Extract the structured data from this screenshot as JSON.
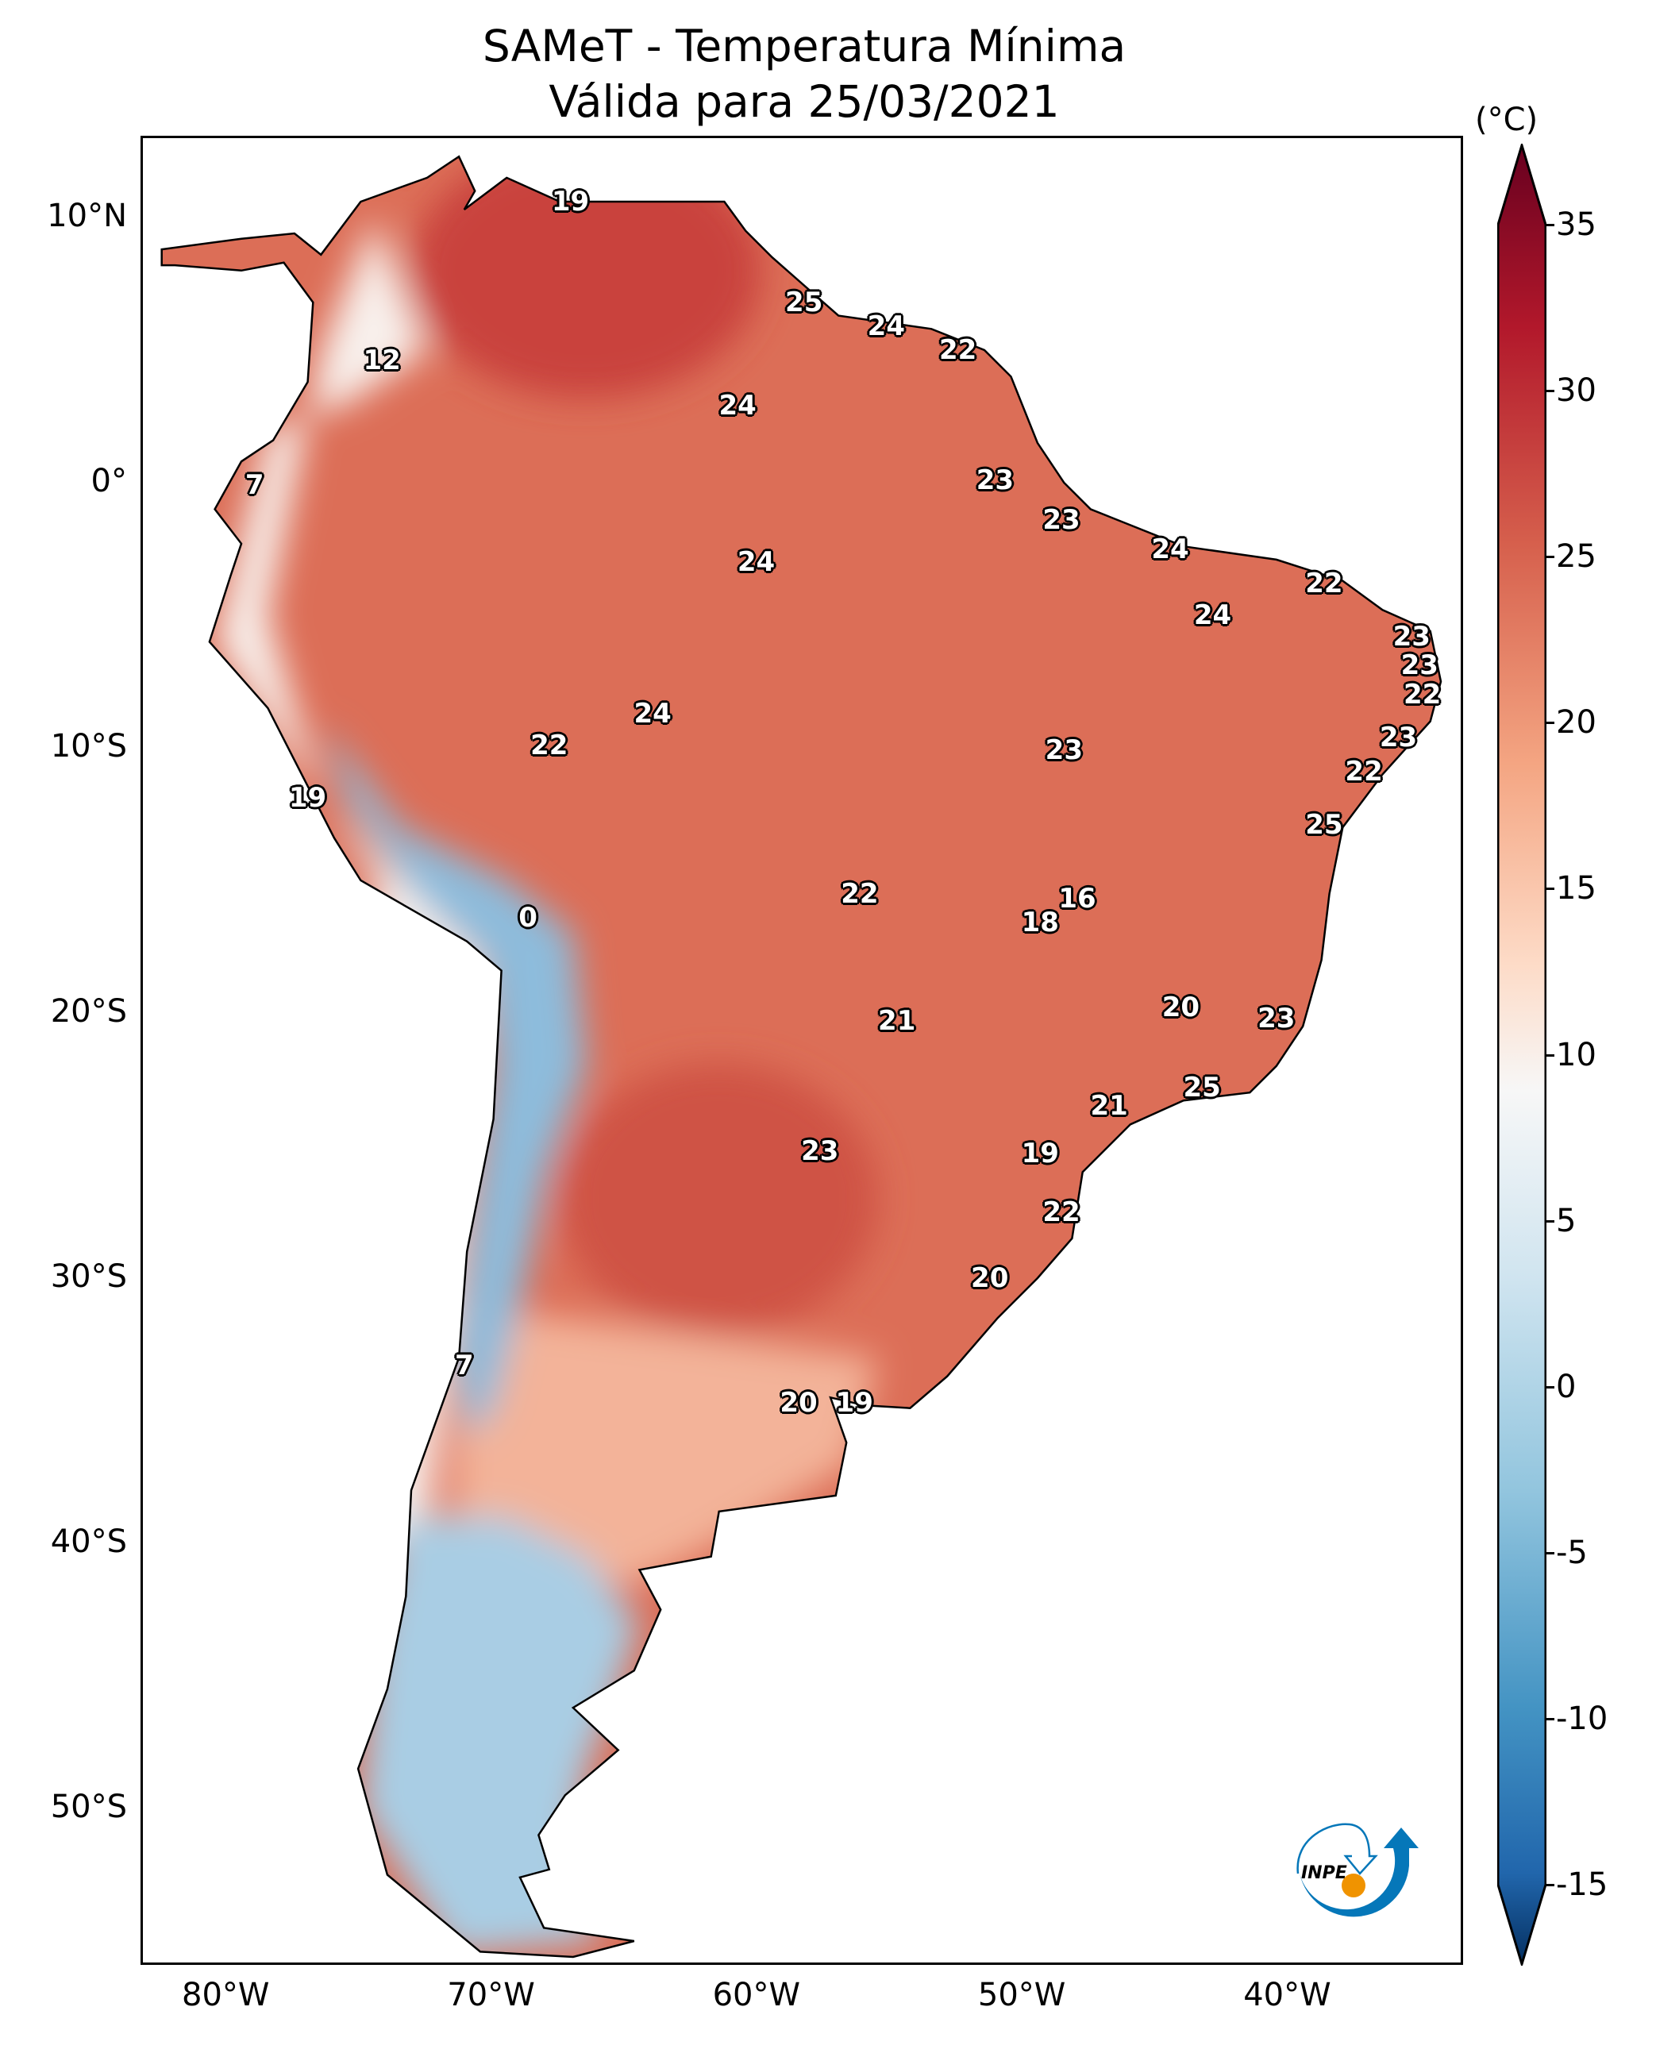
{
  "title": {
    "line1": "SAMeT - Temperatura Mínima",
    "line2": "Válida para 25/03/2021"
  },
  "chart_data": {
    "type": "map",
    "variable": "Temperatura Mínima",
    "colorbar": {
      "label": "(°C)",
      "min": -15,
      "max": 35,
      "ticks": [
        "35",
        "30",
        "25",
        "20",
        "15",
        "10",
        "5",
        "0",
        "-5",
        "-10",
        "-15"
      ],
      "colormap": "RdBu_r",
      "extend": "both"
    },
    "lon_ticks": [
      {
        "v": -80,
        "label": "80°W"
      },
      {
        "v": -70,
        "label": "70°W"
      },
      {
        "v": -60,
        "label": "60°W"
      },
      {
        "v": -50,
        "label": "50°W"
      },
      {
        "v": -40,
        "label": "40°W"
      }
    ],
    "lat_ticks": [
      {
        "v": 10,
        "label": "10°N"
      },
      {
        "v": 0,
        "label": "0°"
      },
      {
        "v": -10,
        "label": "10°S"
      },
      {
        "v": -20,
        "label": "20°S"
      },
      {
        "v": -30,
        "label": "30°S"
      },
      {
        "v": -40,
        "label": "40°S"
      },
      {
        "v": -50,
        "label": "50°S"
      }
    ],
    "stations": [
      {
        "lon": -67.6,
        "lat": 10.6,
        "value": "19"
      },
      {
        "lon": -58.8,
        "lat": 6.8,
        "value": "25"
      },
      {
        "lon": -55.7,
        "lat": 5.9,
        "value": "24"
      },
      {
        "lon": -53.0,
        "lat": 5.0,
        "value": "22"
      },
      {
        "lon": -74.7,
        "lat": 4.6,
        "value": "12"
      },
      {
        "lon": -61.3,
        "lat": 2.9,
        "value": "24"
      },
      {
        "lon": -79.5,
        "lat": -0.1,
        "value": "7"
      },
      {
        "lon": -51.6,
        "lat": 0.1,
        "value": "23"
      },
      {
        "lon": -49.1,
        "lat": -1.4,
        "value": "23"
      },
      {
        "lon": -60.6,
        "lat": -3.0,
        "value": "24"
      },
      {
        "lon": -45.0,
        "lat": -2.5,
        "value": "24"
      },
      {
        "lon": -39.2,
        "lat": -3.8,
        "value": "22"
      },
      {
        "lon": -43.4,
        "lat": -5.0,
        "value": "24"
      },
      {
        "lon": -35.9,
        "lat": -5.8,
        "value": "23"
      },
      {
        "lon": -35.6,
        "lat": -6.9,
        "value": "23"
      },
      {
        "lon": -35.5,
        "lat": -8.0,
        "value": "22"
      },
      {
        "lon": -64.5,
        "lat": -8.7,
        "value": "24"
      },
      {
        "lon": -36.4,
        "lat": -9.6,
        "value": "23"
      },
      {
        "lon": -68.4,
        "lat": -9.9,
        "value": "22"
      },
      {
        "lon": -49.0,
        "lat": -10.1,
        "value": "23"
      },
      {
        "lon": -37.7,
        "lat": -10.9,
        "value": "22"
      },
      {
        "lon": -77.5,
        "lat": -11.9,
        "value": "19"
      },
      {
        "lon": -39.2,
        "lat": -12.9,
        "value": "25"
      },
      {
        "lon": -56.7,
        "lat": -15.5,
        "value": "22"
      },
      {
        "lon": -48.5,
        "lat": -15.7,
        "value": "16"
      },
      {
        "lon": -69.2,
        "lat": -16.4,
        "value": "0"
      },
      {
        "lon": -49.9,
        "lat": -16.6,
        "value": "18"
      },
      {
        "lon": -44.6,
        "lat": -19.8,
        "value": "20"
      },
      {
        "lon": -41.0,
        "lat": -20.2,
        "value": "23"
      },
      {
        "lon": -55.3,
        "lat": -20.3,
        "value": "21"
      },
      {
        "lon": -43.8,
        "lat": -22.8,
        "value": "25"
      },
      {
        "lon": -47.3,
        "lat": -23.5,
        "value": "21"
      },
      {
        "lon": -49.9,
        "lat": -25.3,
        "value": "19"
      },
      {
        "lon": -58.2,
        "lat": -25.2,
        "value": "23"
      },
      {
        "lon": -49.1,
        "lat": -27.5,
        "value": "22"
      },
      {
        "lon": -51.8,
        "lat": -30.0,
        "value": "20"
      },
      {
        "lon": -71.6,
        "lat": -33.3,
        "value": "7"
      },
      {
        "lon": -59.0,
        "lat": -34.7,
        "value": "20"
      },
      {
        "lon": -56.9,
        "lat": -34.7,
        "value": "19"
      }
    ]
  },
  "logo": {
    "text": "INPE",
    "blue": "#0577b9",
    "orange": "#f09300"
  }
}
